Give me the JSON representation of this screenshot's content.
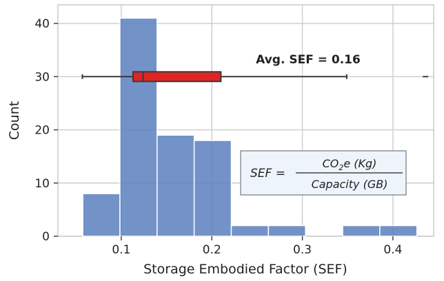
{
  "chart_data": {
    "type": "bar",
    "subtype": "histogram",
    "xlabel": "Storage Embodied Factor (SEF)",
    "ylabel": "Count",
    "xlim": [
      0.03,
      0.445
    ],
    "ylim": [
      0,
      43.5
    ],
    "xticks": [
      "0.1",
      "0.2",
      "0.3",
      "0.4"
    ],
    "xtick_values": [
      0.1,
      0.2,
      0.3,
      0.4
    ],
    "yticks": [
      "0",
      "10",
      "20",
      "30",
      "40"
    ],
    "ytick_values": [
      0,
      10,
      20,
      30,
      40
    ],
    "grid": true,
    "bar_color": "#5b7fbe",
    "bins": [
      {
        "x0": 0.0575,
        "x1": 0.0985,
        "count": 8
      },
      {
        "x0": 0.0985,
        "x1": 0.1395,
        "count": 41
      },
      {
        "x0": 0.1395,
        "x1": 0.1805,
        "count": 19
      },
      {
        "x0": 0.1805,
        "x1": 0.2215,
        "count": 18
      },
      {
        "x0": 0.2215,
        "x1": 0.2625,
        "count": 2
      },
      {
        "x0": 0.2625,
        "x1": 0.3035,
        "count": 2
      },
      {
        "x0": 0.3035,
        "x1": 0.3445,
        "count": 0
      },
      {
        "x0": 0.3445,
        "x1": 0.3855,
        "count": 2
      },
      {
        "x0": 0.3855,
        "x1": 0.4265,
        "count": 2
      }
    ],
    "boxplot": {
      "y": 30,
      "whisker_low": 0.057,
      "q1": 0.113,
      "median": 0.124,
      "q3": 0.21,
      "whisker_high": 0.349,
      "outlier": 0.436,
      "fill_color": "#e02424"
    },
    "annotation": "Avg. SEF = 0.16",
    "equation": {
      "lhs": "SEF =",
      "numerator_main": "CO",
      "numerator_sub": "2",
      "numerator_rest": "e (Kg)",
      "denominator": "Capacity (GB)"
    }
  }
}
